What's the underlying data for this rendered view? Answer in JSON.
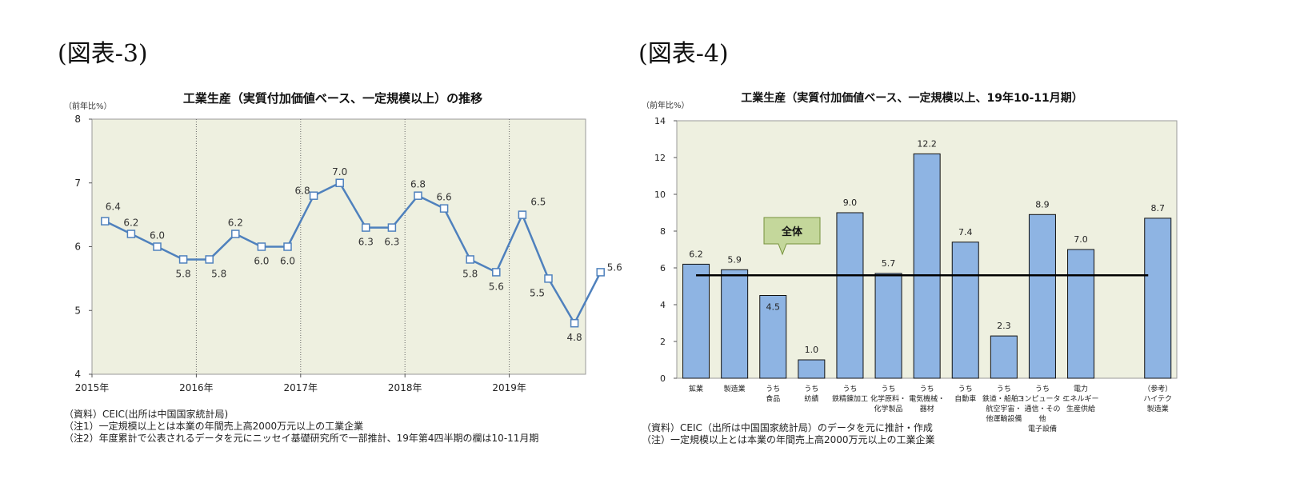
{
  "figure3": {
    "label": "(図表-3)",
    "chart_data": {
      "type": "line",
      "title": "工業生産（実質付加価値ベース、一定規模以上）の推移",
      "unit": "（前年比%）",
      "xlabel": "",
      "ylabel": "",
      "ylim": [
        4,
        8
      ],
      "yticks": [
        "4",
        "5",
        "6",
        "7",
        "8"
      ],
      "year_labels": [
        "2015年",
        "2016年",
        "2017年",
        "2018年",
        "2019年"
      ],
      "grid": "vertical dotted lines at year boundaries",
      "series": [
        {
          "values": [
            6.4,
            6.2,
            6.0,
            5.8,
            5.8,
            6.2,
            6.0,
            6.0,
            6.8,
            7.0,
            6.3,
            6.3,
            6.8,
            6.6,
            5.8,
            5.6,
            6.5,
            5.5,
            4.8,
            5.6
          ],
          "labels": [
            "6.4",
            "6.2",
            "6.0",
            "5.8",
            "5.8",
            "6.2",
            "6.0",
            "6.0",
            "6.8",
            "7.0",
            "6.3",
            "6.3",
            "6.8",
            "6.6",
            "5.8",
            "5.6",
            "6.5",
            "5.5",
            "4.8",
            "5.6"
          ]
        }
      ]
    },
    "notes": [
      "（資料）CEIC(出所は中国国家統計局)",
      "（注1）一定規模以上とは本業の年間売上高2000万元以上の工業企業",
      "（注2）年度累計で公表されるデータを元にニッセイ基礎研究所で一部推計、19年第4四半期の欄は10-11月期"
    ]
  },
  "figure4": {
    "label": "(図表-4)",
    "chart_data": {
      "type": "bar",
      "title": "工業生産（実質付加価値ベース、一定規模以上、19年10-11月期）",
      "unit": "（前年比%）",
      "xlabel": "",
      "ylabel": "",
      "ylim": [
        0,
        14
      ],
      "yticks": [
        "0",
        "2",
        "4",
        "6",
        "8",
        "10",
        "12",
        "14"
      ],
      "categories": [
        [
          "鉱業"
        ],
        [
          "製造業"
        ],
        [
          "うち",
          "食品"
        ],
        [
          "うち",
          "紡績"
        ],
        [
          "うち",
          "鉄精錬加工"
        ],
        [
          "うち",
          "化学原料・",
          "化学製品"
        ],
        [
          "うち",
          "電気機械・",
          "器材"
        ],
        [
          "うち",
          "自動車"
        ],
        [
          "うち",
          "鉄道・船舶・",
          "航空宇宙・",
          "他運輸設備"
        ],
        [
          "うち",
          "コンピュータ・",
          "通信・その",
          "他",
          "電子設備"
        ],
        [
          "電力",
          "エネルギー",
          "生産供給"
        ],
        [
          "（参考）",
          "ハイテク",
          "製造業"
        ]
      ],
      "slots": [
        0,
        1,
        2,
        3,
        4,
        5,
        6,
        7,
        8,
        9,
        10,
        12
      ],
      "values": [
        6.2,
        5.9,
        4.5,
        1.0,
        9.0,
        5.7,
        12.2,
        7.4,
        2.3,
        8.9,
        7.0,
        8.7
      ],
      "labels": [
        "6.2",
        "5.9",
        "4.5",
        "1.0",
        "9.0",
        "5.7",
        "12.2",
        "7.4",
        "2.3",
        "8.9",
        "7.0",
        "8.7"
      ],
      "reference_line": {
        "name": "全体",
        "value": 5.6
      },
      "colors": {
        "bar": "#8eb4e3",
        "plot_bg": "#eef0e0",
        "callout_bg": "#c4d79b"
      }
    },
    "notes": [
      "（資料）CEIC（出所は中国国家統計局）のデータを元に推計・作成",
      "（注）一定規模以上とは本業の年間売上高2000万元以上の工業企業"
    ]
  },
  "colors": {
    "line": "#4f81bd",
    "plot_bg": "#eef0e0",
    "bar": "#8eb4e3",
    "callout_bg": "#c4d79b",
    "callout_border": "#76923c"
  }
}
